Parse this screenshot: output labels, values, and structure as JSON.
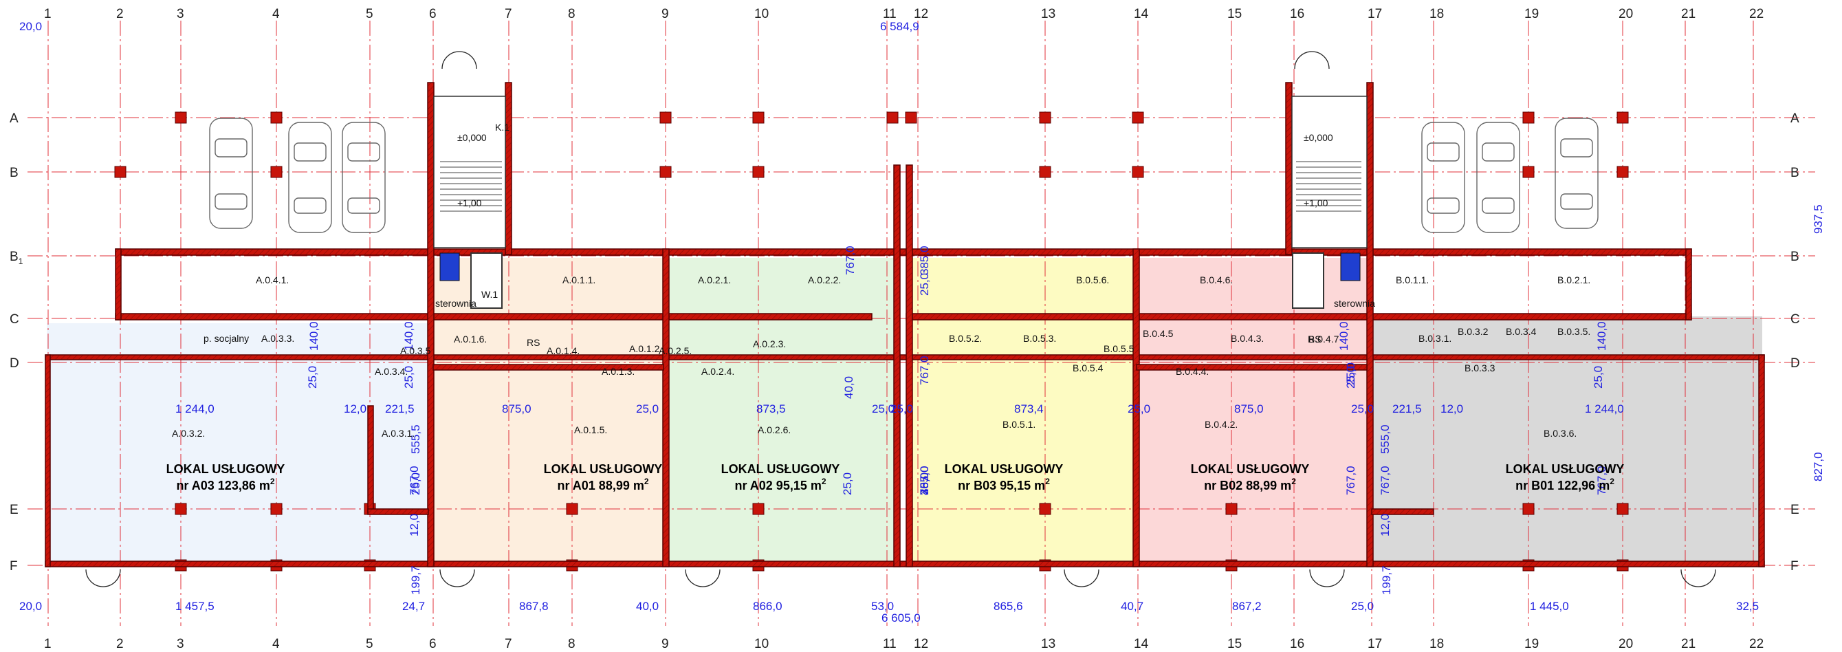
{
  "colors": {
    "wall": "#c8140a",
    "wall_stroke": "#5a0000",
    "grid": "#e0303a",
    "dim": "#1f1fe0",
    "zone_A03": "#eef4fc",
    "zone_A01": "#fdeede",
    "zone_A02": "#e3f5df",
    "zone_B03": "#fdfbc2",
    "zone_B02": "#fcd8d8",
    "zone_B01": "#d9d9d9"
  },
  "grid_columns": [
    "1",
    "2",
    "3",
    "4",
    "5",
    "6",
    "7",
    "8",
    "9",
    "10",
    "11",
    "12",
    "13",
    "14",
    "15",
    "16",
    "17",
    "18",
    "19",
    "20",
    "21",
    "22"
  ],
  "grid_rows": [
    "A",
    "B",
    "B",
    "C",
    "D",
    "E",
    "F"
  ],
  "grid_row_b1_subscript": "1",
  "overall_dimensions": {
    "top_total": "6 584,9",
    "bottom_total": "6 605,0",
    "top_left_edge": "20,0",
    "bottom_left_edge": "20,0",
    "right_upper": "937,5",
    "right_lower": "827,0"
  },
  "bottom_dimensions": [
    "1 457,5",
    "24,7",
    "199,7",
    "867,8",
    "40,0",
    "866,0",
    "53,0",
    "865,6",
    "40,7",
    "867,2",
    "25,0",
    "199,7",
    "1 445,0",
    "32,5"
  ],
  "mid_dimensions": [
    "1 244,0",
    "12,0",
    "221,5",
    "875,0",
    "25,0",
    "873,5",
    "25,0",
    "25,0",
    "873,4",
    "25,0",
    "875,0",
    "25,0",
    "221,5",
    "12,0",
    "1 244,0"
  ],
  "vertical_dimensions": [
    "140,0",
    "140,0",
    "25,0",
    "25,0",
    "555,5",
    "767,0",
    "12,0",
    "767,0",
    "40,0",
    "385,0",
    "25,0",
    "767,0",
    "40,0",
    "385,0",
    "25,0",
    "767,0",
    "25,0",
    "767,0",
    "140,0",
    "25,0",
    "555,0",
    "767,0",
    "12,0",
    "140,0",
    "25,0",
    "767,0",
    "25,0",
    "25,0"
  ],
  "units": [
    {
      "line1": "LOKAL USŁUGOWY",
      "line2": "nr A03 123,86 m",
      "sup": "2"
    },
    {
      "line1": "LOKAL USŁUGOWY",
      "line2": "nr A01 88,99 m",
      "sup": "2"
    },
    {
      "line1": "LOKAL USŁUGOWY",
      "line2": "nr A02 95,15 m",
      "sup": "2"
    },
    {
      "line1": "LOKAL USŁUGOWY",
      "line2": "nr B03 95,15 m",
      "sup": "2"
    },
    {
      "line1": "LOKAL USŁUGOWY",
      "line2": "nr B02 88,99 m",
      "sup": "2"
    },
    {
      "line1": "LOKAL USŁUGOWY",
      "line2": "nr B01 122,96 m",
      "sup": "2"
    }
  ],
  "room_labels": [
    "A.0.4.1.",
    "A.0.1.1.",
    "A.0.2.1.",
    "A.0.2.2.",
    "B.0.5.6.",
    "B.0.4.6.",
    "B.0.1.1.",
    "B.0.2.1.",
    "p. socjalny",
    "A.0.3.3.",
    "A.0.3.5",
    "A.0.1.6.",
    "A.0.1.4.",
    "A.0.1.2",
    "A.0.2.5.",
    "A.0.2.3.",
    "B.0.5.2.",
    "B.0.5.3.",
    "B.0.5.5",
    "B.0.4.5",
    "B.0.4.3.",
    "B.0.4.7",
    "B.0.3.1.",
    "B.0.3.2",
    "B.0.3.4",
    "B.0.3.5.",
    "A.0.3.4.",
    "A.0.1.3.",
    "A.0.2.4.",
    "B.0.5.4",
    "B.0.4.4.",
    "B.0.3.3",
    "A.0.3.2.",
    "A.0.3.1.",
    "A.0.1.5.",
    "A.0.2.6.",
    "B.0.5.1.",
    "B.0.4.2.",
    "B.0.3.6.",
    "K.1",
    "W.1",
    "RS",
    "RS"
  ],
  "stair_labels": [
    "±0,000",
    "+1,00",
    "±0,000",
    "+1,00"
  ],
  "small_labels": [
    "sterownia",
    "sterownia"
  ]
}
